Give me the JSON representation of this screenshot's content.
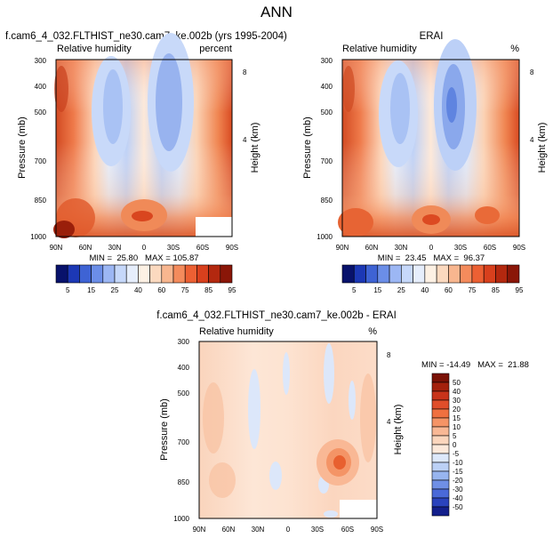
{
  "figure": {
    "title": "ANN"
  },
  "panels": [
    {
      "id": "model",
      "title": "f.cam6_4_032.FLTHIST_ne30.cam7_ke.002b (yrs 1995-2004)",
      "subtitle_left": "Relative humidity",
      "subtitle_right": "percent",
      "ylabel": "Pressure (mb)",
      "ylabel_right": "Height (km)",
      "stats": "MIN =  25.80   MAX = 105.87",
      "y_ticks": [
        "300",
        "400",
        "500",
        "700",
        "850",
        "1000"
      ],
      "x_ticks": [
        "90N",
        "60N",
        "30N",
        "0",
        "30S",
        "60S",
        "90S"
      ],
      "height_ticks": [
        "8",
        "4"
      ]
    },
    {
      "id": "obs",
      "title": "ERAI",
      "subtitle_left": "Relative humidity",
      "subtitle_right": "%",
      "ylabel": "Pressure (mb)",
      "ylabel_right": "Height (km)",
      "stats": "MIN =  23.45   MAX =  96.37",
      "y_ticks": [
        "300",
        "400",
        "500",
        "700",
        "850",
        "1000"
      ],
      "x_ticks": [
        "90N",
        "60N",
        "30N",
        "0",
        "30S",
        "60S",
        "90S"
      ],
      "height_ticks": [
        "8",
        "4"
      ]
    },
    {
      "id": "diff",
      "title": "f.cam6_4_032.FLTHIST_ne30.cam7_ke.002b - ERAI",
      "subtitle_left": "Relative humidity",
      "subtitle_right": "%",
      "ylabel": "Pressure (mb)",
      "ylabel_right": "Height (km)",
      "stats": "MIN = -14.49   MAX =  21.88",
      "y_ticks": [
        "300",
        "400",
        "500",
        "700",
        "850",
        "1000"
      ],
      "x_ticks": [
        "90N",
        "60N",
        "30N",
        "0",
        "30S",
        "60S",
        "90S"
      ],
      "height_ticks": [
        "8",
        "4"
      ]
    }
  ],
  "colorbars": {
    "absolute": {
      "labels": [
        "5",
        "15",
        "25",
        "40",
        "60",
        "75",
        "85",
        "95"
      ],
      "colors": [
        "#08126b",
        "#1c38b5",
        "#3e63d4",
        "#6b8ee8",
        "#9cb7f4",
        "#c6d8fa",
        "#e6eefc",
        "#fdf1e4",
        "#fbd9bf",
        "#f8b68f",
        "#f48b5c",
        "#ec6033",
        "#d8401d",
        "#b3280f",
        "#8a1608"
      ]
    },
    "difference": {
      "labels": [
        "50",
        "40",
        "30",
        "20",
        "15",
        "10",
        "5",
        "0",
        "-5",
        "-10",
        "-15",
        "-20",
        "-30",
        "-40",
        "-50"
      ],
      "colors": [
        "#7a1206",
        "#a4210c",
        "#c8341a",
        "#e04e2a",
        "#f07040",
        "#f59466",
        "#f9b895",
        "#fcd6bd",
        "#fde9db",
        "#dde8fa",
        "#bcd1f6",
        "#98b5ef",
        "#6f8fe6",
        "#4a69d8",
        "#2a43bd",
        "#131f8c"
      ]
    }
  },
  "chart_data": [
    {
      "type": "heatmap",
      "title": "f.cam6_4_032.FLTHIST_ne30.cam7_ke.002b (yrs 1995-2004)",
      "subtitle": "Relative humidity",
      "units": "percent",
      "x": [
        "90N",
        "60N",
        "30N",
        "0",
        "30S",
        "60S",
        "90S"
      ],
      "y": [
        300,
        400,
        500,
        700,
        850,
        1000
      ],
      "ylabel": "Pressure (mb)",
      "ylabel_right": "Height (km)",
      "min": 25.8,
      "max": 105.87,
      "values": [
        [
          92,
          78,
          42,
          55,
          35,
          62,
          88
        ],
        [
          88,
          72,
          30,
          48,
          30,
          58,
          86
        ],
        [
          84,
          68,
          32,
          52,
          32,
          60,
          84
        ],
        [
          80,
          66,
          38,
          62,
          38,
          66,
          82
        ],
        [
          90,
          78,
          58,
          80,
          66,
          78,
          88
        ],
        [
          100,
          84,
          72,
          86,
          72,
          80,
          95
        ]
      ]
    },
    {
      "type": "heatmap",
      "title": "ERAI",
      "subtitle": "Relative humidity",
      "units": "%",
      "x": [
        "90N",
        "60N",
        "30N",
        "0",
        "30S",
        "60S",
        "90S"
      ],
      "y": [
        300,
        400,
        500,
        700,
        850,
        1000
      ],
      "ylabel": "Pressure (mb)",
      "ylabel_right": "Height (km)",
      "min": 23.45,
      "max": 96.37,
      "values": [
        [
          88,
          75,
          40,
          52,
          33,
          58,
          86
        ],
        [
          85,
          70,
          28,
          46,
          25,
          55,
          84
        ],
        [
          82,
          66,
          30,
          50,
          26,
          56,
          82
        ],
        [
          80,
          64,
          36,
          60,
          35,
          62,
          80
        ],
        [
          88,
          74,
          56,
          78,
          64,
          74,
          86
        ],
        [
          94,
          82,
          70,
          84,
          72,
          80,
          92
        ]
      ]
    },
    {
      "type": "heatmap",
      "title": "f.cam6_4_032.FLTHIST_ne30.cam7_ke.002b - ERAI",
      "subtitle": "Relative humidity",
      "units": "%",
      "x": [
        "90N",
        "60N",
        "30N",
        "0",
        "30S",
        "60S",
        "90S"
      ],
      "y": [
        300,
        400,
        500,
        700,
        850,
        1000
      ],
      "ylabel": "Pressure (mb)",
      "ylabel_right": "Height (km)",
      "min": -14.49,
      "max": 21.88,
      "values": [
        [
          4,
          3,
          2,
          -3,
          2,
          4,
          3
        ],
        [
          3,
          2,
          2,
          1,
          5,
          -2,
          2
        ],
        [
          2,
          2,
          -4,
          2,
          6,
          3,
          2
        ],
        [
          1,
          2,
          2,
          1,
          3,
          4,
          3
        ],
        [
          2,
          4,
          3,
          2,
          7,
          18,
          4
        ],
        [
          6,
          2,
          2,
          3,
          1,
          3,
          2
        ]
      ]
    }
  ]
}
